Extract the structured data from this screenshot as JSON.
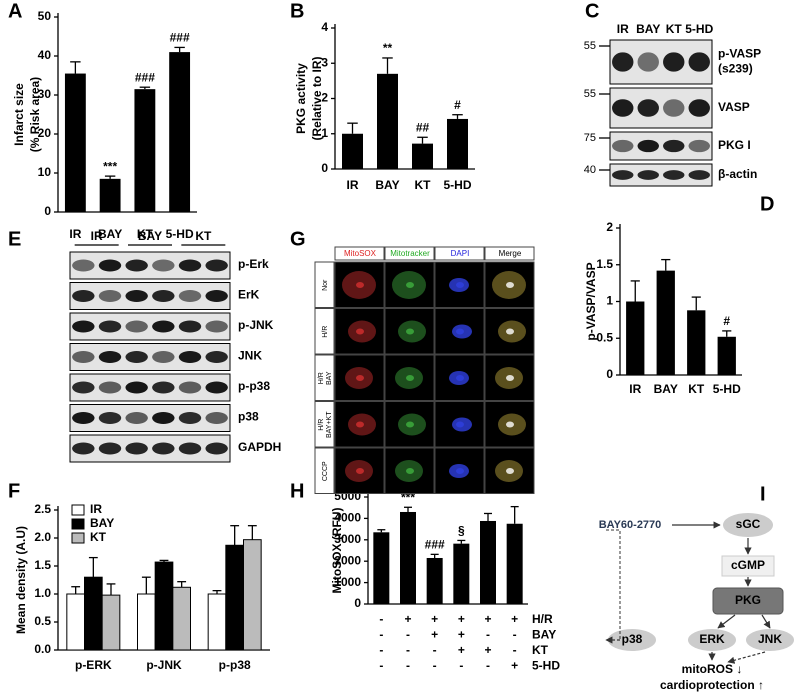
{
  "chart_data": [
    {
      "panel": "A",
      "type": "bar",
      "ylabel": [
        "Infarct size",
        "(% Risk area)"
      ],
      "categories": [
        "IR",
        "BAY",
        "KT",
        "5-HD"
      ],
      "values": [
        35.5,
        8.5,
        31.5,
        41
      ],
      "errors": [
        3,
        0.7,
        0.5,
        1.2
      ],
      "annotations": [
        null,
        "***",
        "###",
        "###"
      ],
      "color": "#000000",
      "ylim": [
        0,
        50
      ],
      "yticks": [
        0,
        10,
        20,
        30,
        40,
        50
      ]
    },
    {
      "panel": "B",
      "type": "bar",
      "ylabel": [
        "PKG activity",
        "(Relative to IR)"
      ],
      "categories": [
        "IR",
        "BAY",
        "KT",
        "5-HD"
      ],
      "values": [
        1.0,
        2.7,
        0.72,
        1.42
      ],
      "errors": [
        0.3,
        0.45,
        0.18,
        0.12
      ],
      "annotations": [
        null,
        "**",
        "##",
        "#"
      ],
      "color": "#000000",
      "ylim": [
        0,
        4
      ],
      "yticks": [
        0,
        1,
        2,
        3,
        4
      ]
    },
    {
      "panel": "D",
      "type": "bar",
      "ylabel": [
        "p-VASP/VASP"
      ],
      "categories": [
        "IR",
        "BAY",
        "KT",
        "5-HD"
      ],
      "values": [
        1.0,
        1.42,
        0.88,
        0.52
      ],
      "errors": [
        0.28,
        0.15,
        0.18,
        0.08
      ],
      "annotations": [
        null,
        null,
        null,
        "#"
      ],
      "color": "#000000",
      "ylim": [
        0,
        2
      ],
      "yticks": [
        0,
        0.5,
        1,
        1.5,
        2
      ]
    },
    {
      "panel": "F",
      "type": "grouped_bar",
      "ylabel": [
        "Mean density (A.U)"
      ],
      "categories": [
        "p-ERK",
        "p-JNK",
        "p-p38"
      ],
      "series": [
        {
          "name": "IR",
          "color": "#ffffff",
          "values": [
            1.0,
            1.0,
            1.0
          ],
          "errors": [
            0.13,
            0.3,
            0.06
          ]
        },
        {
          "name": "BAY",
          "color": "#000000",
          "values": [
            1.3,
            1.57,
            1.87
          ],
          "errors": [
            0.35,
            0.03,
            0.35
          ]
        },
        {
          "name": "KT",
          "color": "#bbbbbb",
          "values": [
            0.98,
            1.12,
            1.97
          ],
          "errors": [
            0.2,
            0.1,
            0.25
          ]
        }
      ],
      "ylim": [
        0,
        2.5
      ],
      "yticks": [
        {
          "value": 0,
          "label": "0.0"
        },
        0.5,
        {
          "value": 1,
          "label": "1.0"
        },
        1.5,
        {
          "value": 2,
          "label": "2.0"
        },
        2.5
      ],
      "legend": "upper left"
    },
    {
      "panel": "H",
      "type": "bar",
      "ylabel": [
        "MitoSOX (RFU)"
      ],
      "values": [
        3350,
        4300,
        2150,
        2820,
        3880,
        3750
      ],
      "errors": [
        120,
        220,
        170,
        150,
        350,
        800
      ],
      "annotations": [
        null,
        "***",
        "###",
        "§",
        null,
        null
      ],
      "color": "#000000",
      "ylim": [
        0,
        5000
      ],
      "yticks": [
        0,
        1000,
        2000,
        3000,
        4000,
        5000
      ],
      "treatments": [
        {
          "name": "H/R",
          "signs": [
            "-",
            "+",
            "+",
            "+",
            "+",
            "+"
          ]
        },
        {
          "name": "BAY",
          "signs": [
            "-",
            "-",
            "+",
            "+",
            "-",
            "-"
          ]
        },
        {
          "name": "KT",
          "signs": [
            "-",
            "-",
            "-",
            "+",
            "+",
            "-"
          ]
        },
        {
          "name": "5-HD",
          "signs": [
            "-",
            "-",
            "-",
            "-",
            "-",
            "+"
          ]
        }
      ]
    }
  ],
  "blot_c": {
    "panel": "C",
    "lanes": [
      "IR",
      "BAY",
      "KT",
      "5-HD"
    ],
    "rows": [
      {
        "label": [
          "p-VASP",
          "(s239)"
        ],
        "marker": 55
      },
      {
        "label": [
          "VASP"
        ],
        "marker": 55
      },
      {
        "label": [
          "PKG I"
        ],
        "marker": 75
      },
      {
        "label": [
          "β-actin"
        ],
        "marker": 40
      }
    ]
  },
  "blot_e": {
    "panel": "E",
    "lanes": [
      "IR",
      "BAY",
      "KT"
    ],
    "rows": [
      "p-Erk",
      "ErK",
      "p-JNK",
      "JNK",
      "p-p38",
      "p38",
      "GAPDH"
    ]
  },
  "imaging_g": {
    "panel": "G",
    "columns": [
      "MitoSOX",
      "Mitotracker",
      "DAPI",
      "Merge"
    ],
    "rows": [
      [
        "Nor"
      ],
      [
        "H/R"
      ],
      [
        "H/R",
        "BAY"
      ],
      [
        "H/R",
        "BAY+KT"
      ],
      [
        "CCCP"
      ]
    ]
  },
  "pathway_i": {
    "panel": "I",
    "nodes": {
      "drug": "BAY60-2770",
      "sgc": "sGC",
      "cgmp": "cGMP",
      "pkg": "PKG",
      "p38": "p38",
      "erk": "ERK",
      "jnk": "JNK"
    },
    "outcomes": [
      "mitoROS ↓",
      "cardioprotection ↑"
    ]
  }
}
